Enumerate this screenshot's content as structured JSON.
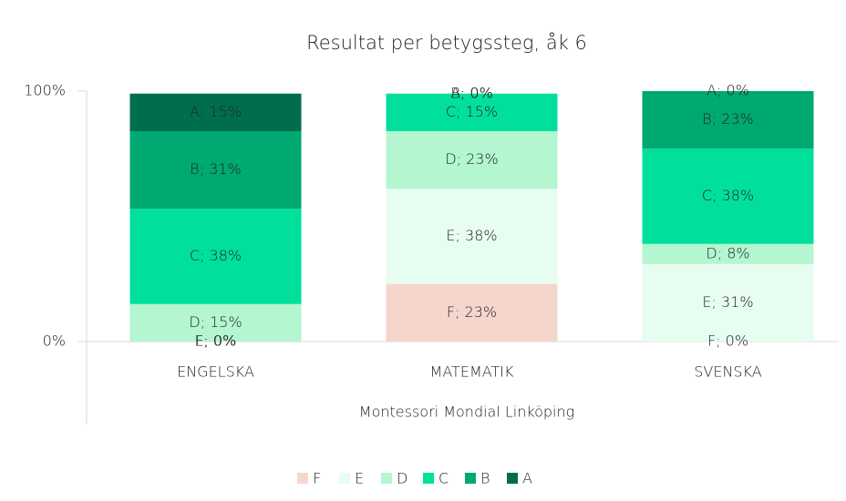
{
  "chart_data": {
    "type": "stacked_bar",
    "title": "Resultat per betygssteg, åk 6",
    "x_label": "Montessori Mondial Linköping",
    "categories": [
      "ENGELSKA",
      "MATEMATIK",
      "SVENSKA"
    ],
    "series": [
      {
        "name": "F",
        "color": "#f5d6cd",
        "values": [
          0,
          23,
          0
        ],
        "value_labels": [
          "F; 0%",
          "F; 23%",
          "F; 0%"
        ]
      },
      {
        "name": "E",
        "color": "#e6fdf0",
        "values": [
          0,
          38,
          31
        ],
        "value_labels": [
          "E; 0%",
          "E; 38%",
          "E; 31%"
        ]
      },
      {
        "name": "D",
        "color": "#b3f6d0",
        "values": [
          15,
          23,
          8
        ],
        "value_labels": [
          "D; 15%",
          "D; 23%",
          "D; 8%"
        ]
      },
      {
        "name": "C",
        "color": "#00e09c",
        "values": [
          38,
          15,
          38
        ],
        "value_labels": [
          "C; 38%",
          "C; 15%",
          "C; 38%"
        ]
      },
      {
        "name": "B",
        "color": "#00a872",
        "values": [
          31,
          0,
          23
        ],
        "value_labels": [
          "B; 31%",
          "B; 0%",
          "B; 23%"
        ]
      },
      {
        "name": "A",
        "color": "#006e4d",
        "values": [
          15,
          0,
          0
        ],
        "value_labels": [
          "A; 15%",
          "A; 0%",
          "A; 0%"
        ]
      }
    ],
    "ylim": [
      0,
      100
    ],
    "yticks": [
      {
        "value": 0,
        "label": "0%"
      },
      {
        "value": 100,
        "label": "100%"
      }
    ],
    "legend": "bottom"
  }
}
